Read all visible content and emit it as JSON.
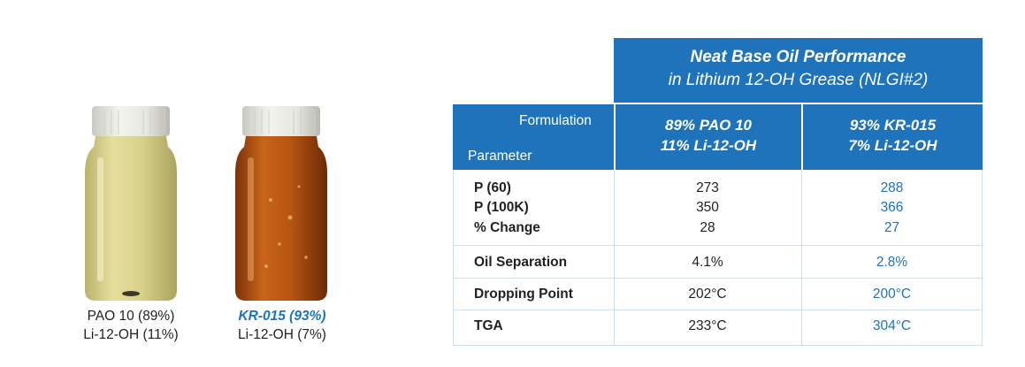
{
  "jars": [
    {
      "caption_line1": "PAO 10 (89%)",
      "caption_line2": "Li-12-OH (11%)",
      "fluid_color": "#d6cf8a"
    },
    {
      "caption_line1": "KR-015 (93%)",
      "caption_line2": "Li-12-OH (7%)",
      "fluid_color": "#b9560f"
    }
  ],
  "table": {
    "title_line1": "Neat Base Oil Performance",
    "title_line2": "in Lithium 12-OH Grease (NLGI#2)",
    "formulation_label": "Formulation",
    "parameter_label": "Parameter",
    "col1_line1": "89% PAO 10",
    "col1_line2": "11% Li-12-OH",
    "col2_line1": "93% KR-015",
    "col2_line2": "7% Li-12-OH",
    "rows": [
      {
        "label": "P (60)",
        "v1": "273",
        "v2": "288"
      },
      {
        "label": "P (100K)",
        "v1": "350",
        "v2": "366"
      },
      {
        "label": "% Change",
        "v1": "28",
        "v2": "27"
      },
      {
        "label": "Oil Separation",
        "v1": "4.1%",
        "v2": "2.8%"
      },
      {
        "label": "Dropping Point",
        "v1": "202°C",
        "v2": "200°C"
      },
      {
        "label": "TGA",
        "v1": "233°C",
        "v2": "304°C"
      }
    ],
    "header_color": "#1f73ba",
    "accent_value_color": "#1f73ba"
  }
}
